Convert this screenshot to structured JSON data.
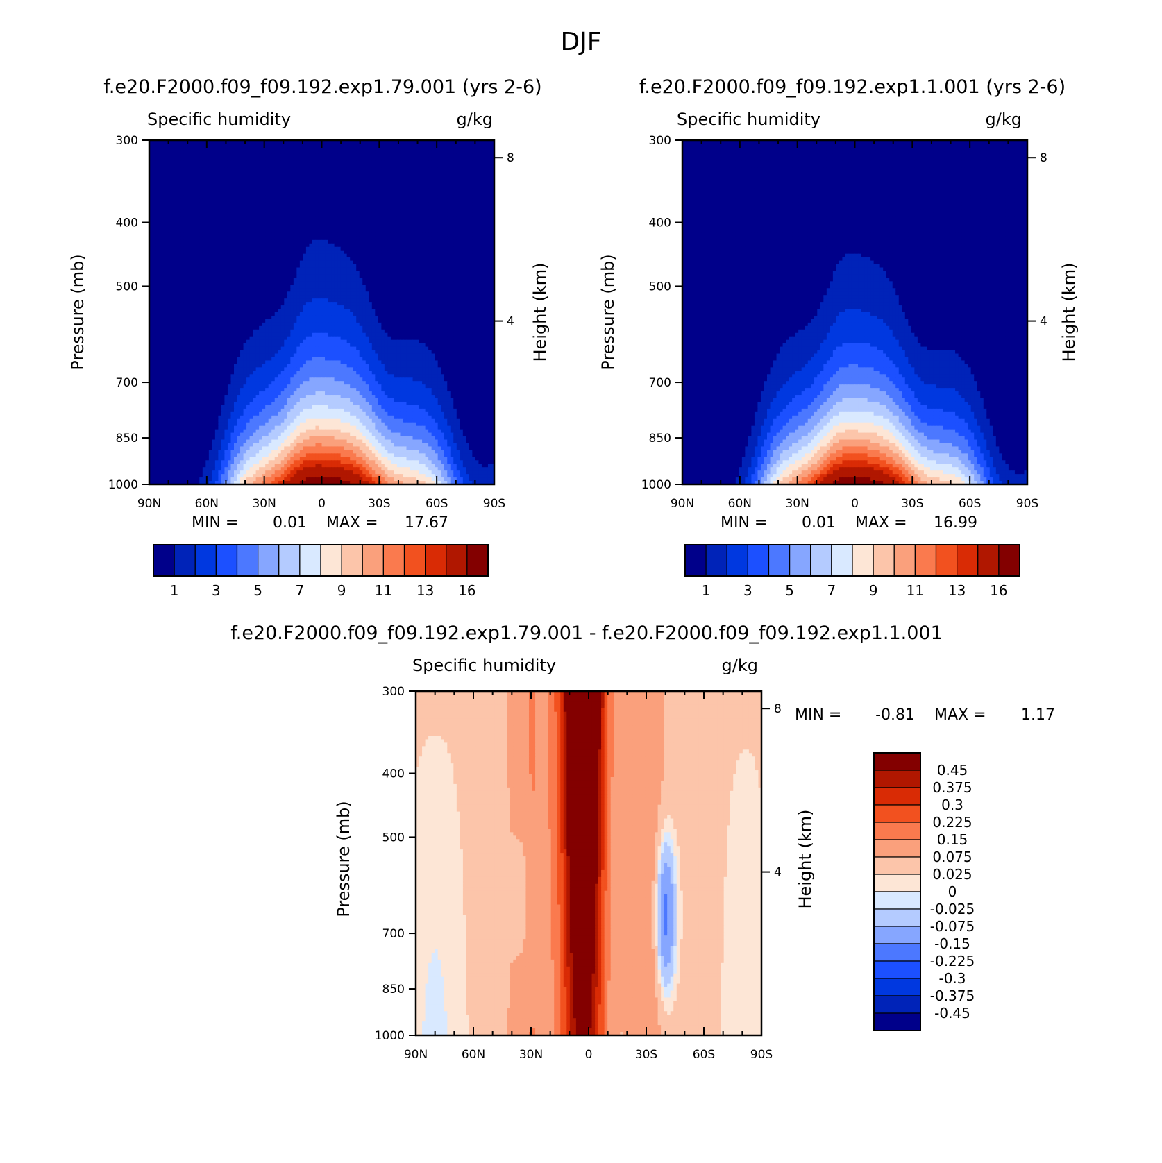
{
  "title": "DJF",
  "panels": [
    {
      "case_title": "f.e20.F2000.f09_f09.192.exp1.79.001 (yrs 2-6)",
      "left_label": "Specific humidity",
      "right_label": "g/kg",
      "ylabel": "Pressure (mb)",
      "ylabel_right": "Height (km)",
      "min_text": "MIN =",
      "min_value": "0.01",
      "max_text": "MAX =",
      "max_value": "17.67"
    },
    {
      "case_title": "f.e20.F2000.f09_f09.192.exp1.1.001 (yrs 2-6)",
      "left_label": "Specific humidity",
      "right_label": "g/kg",
      "ylabel": "Pressure (mb)",
      "ylabel_right": "Height (km)",
      "min_text": "MIN =",
      "min_value": "0.01",
      "max_text": "MAX =",
      "max_value": "16.99"
    },
    {
      "case_title": "f.e20.F2000.f09_f09.192.exp1.79.001 - f.e20.F2000.f09_f09.192.exp1.1.001",
      "left_label": "Specific humidity",
      "right_label": "g/kg",
      "ylabel": "Pressure (mb)",
      "ylabel_right": "Height (km)",
      "min_text": "MIN =",
      "min_value": "-0.81",
      "max_text": "MAX =",
      "max_value": "1.17"
    }
  ],
  "chart_data": [
    {
      "type": "heatmap",
      "title": "Specific humidity",
      "units": "g/kg",
      "xlabel": "",
      "ylabel": "Pressure (mb)",
      "ylabel_right": "Height (km)",
      "x_ticks": [
        "90N",
        "60N",
        "30N",
        "0",
        "30S",
        "60S",
        "90S"
      ],
      "y_ticks": [
        "300",
        "400",
        "500",
        "700",
        "850",
        "1000"
      ],
      "y_ticks_right": [
        "8",
        "4"
      ],
      "ylim": [
        1000,
        300
      ],
      "y_scale": "log",
      "min": 0.01,
      "max": 17.67,
      "colorbar_labels": [
        "1",
        "3",
        "5",
        "7",
        "9",
        "11",
        "13",
        "16"
      ],
      "colors": [
        "#00008a",
        "#0023b8",
        "#0038e0",
        "#1c50ff",
        "#4c78ff",
        "#86a6ff",
        "#b4cbff",
        "#d9e9ff",
        "#fde6d6",
        "#fcc5aa",
        "#faa07c",
        "#fa7a4e",
        "#f2511f",
        "#d92b05",
        "#b01700",
        "#830000"
      ],
      "profile": {
        "hw_base": 33,
        "hw_top": 8,
        "lat_center": 2,
        "skew": 0.25,
        "ztop": 0.72
      }
    },
    {
      "type": "heatmap",
      "title": "Specific humidity",
      "units": "g/kg",
      "xlabel": "",
      "ylabel": "Pressure (mb)",
      "ylabel_right": "Height (km)",
      "x_ticks": [
        "90N",
        "60N",
        "30N",
        "0",
        "30S",
        "60S",
        "90S"
      ],
      "y_ticks": [
        "300",
        "400",
        "500",
        "700",
        "850",
        "1000"
      ],
      "y_ticks_right": [
        "8",
        "4"
      ],
      "ylim": [
        1000,
        300
      ],
      "y_scale": "log",
      "min": 0.01,
      "max": 16.99,
      "colorbar_labels": [
        "1",
        "3",
        "5",
        "7",
        "9",
        "11",
        "13",
        "16"
      ],
      "colors": [
        "#00008a",
        "#0023b8",
        "#0038e0",
        "#1c50ff",
        "#4c78ff",
        "#86a6ff",
        "#b4cbff",
        "#d9e9ff",
        "#fde6d6",
        "#fcc5aa",
        "#faa07c",
        "#fa7a4e",
        "#f2511f",
        "#d92b05",
        "#b01700",
        "#830000"
      ],
      "profile": {
        "hw_base": 32,
        "hw_top": 7.5,
        "lat_center": 2,
        "skew": 0.25,
        "ztop": 0.68
      }
    },
    {
      "type": "heatmap",
      "title": "Specific humidity",
      "units": "g/kg",
      "xlabel": "",
      "ylabel": "Pressure (mb)",
      "ylabel_right": "Height (km)",
      "x_ticks": [
        "90N",
        "60N",
        "30N",
        "0",
        "30S",
        "60S",
        "90S"
      ],
      "y_ticks": [
        "300",
        "400",
        "500",
        "700",
        "850",
        "1000"
      ],
      "y_ticks_right": [
        "8",
        "4"
      ],
      "ylim": [
        1000,
        300
      ],
      "y_scale": "log",
      "min": -0.81,
      "max": 1.17,
      "colorbar_labels": [
        "0.45",
        "0.375",
        "0.3",
        "0.225",
        "0.15",
        "0.075",
        "0.025",
        "0",
        "-0.025",
        "-0.075",
        "-0.15",
        "-0.225",
        "-0.3",
        "-0.375",
        "-0.45"
      ],
      "colors": [
        "#830000",
        "#b01700",
        "#d92b05",
        "#f2511f",
        "#fa7a4e",
        "#faa07c",
        "#fcc5aa",
        "#fde6d6",
        "#d9e9ff",
        "#b4cbff",
        "#86a6ff",
        "#4c78ff",
        "#1c50ff",
        "#0038e0",
        "#0023b8",
        "#00008a"
      ]
    }
  ]
}
